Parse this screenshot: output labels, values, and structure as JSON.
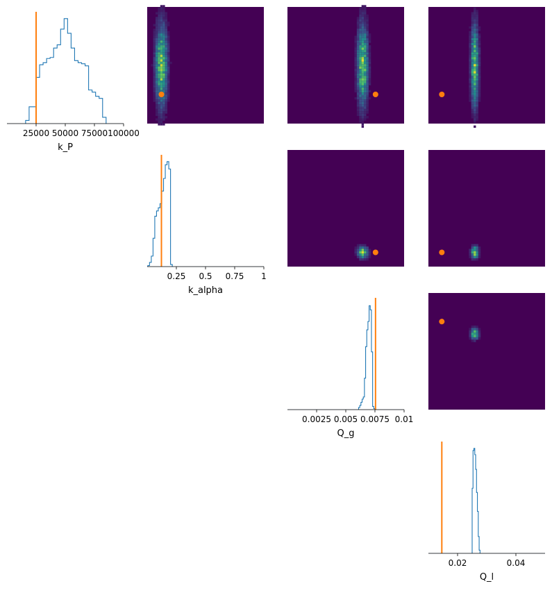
{
  "chart_data": {
    "type": "pairplot",
    "style": {
      "hist_color": "#1f77b4",
      "truth_color": "#ff7f0e",
      "heatmap_bg": "#440154"
    },
    "parameters": [
      {
        "name": "k_P",
        "xlabel": "k_P",
        "xlim": [
          0,
          100000
        ],
        "ticks": [
          25000,
          50000,
          75000,
          100000
        ],
        "tick_labels": [
          "25000",
          "50000",
          "75000",
          "100000"
        ],
        "truth": 25000,
        "hist": {
          "edges": [
            16000,
            19000,
            22000,
            25000,
            28000,
            31000,
            34000,
            37000,
            40000,
            43000,
            46000,
            49000,
            52000,
            55000,
            58000,
            61000,
            64000,
            67000,
            70000,
            73000,
            76000,
            79000,
            82000,
            85000
          ],
          "counts": [
            0.03,
            0.16,
            0.16,
            0.44,
            0.56,
            0.58,
            0.62,
            0.63,
            0.72,
            0.75,
            0.9,
            1.0,
            0.86,
            0.72,
            0.6,
            0.58,
            0.57,
            0.55,
            0.32,
            0.3,
            0.26,
            0.24,
            0.06
          ]
        }
      },
      {
        "name": "k_alpha",
        "xlabel": "k_alpha",
        "xlim": [
          0,
          1
        ],
        "ticks": [
          0.25,
          0.5,
          0.75,
          1
        ],
        "tick_labels": [
          "0.25",
          "0.5",
          "0.75",
          "1"
        ],
        "truth": 0.122,
        "hist": {
          "edges": [
            0.005,
            0.02,
            0.035,
            0.05,
            0.065,
            0.08,
            0.095,
            0.11,
            0.125,
            0.14,
            0.155,
            0.17,
            0.185,
            0.2,
            0.215
          ],
          "counts": [
            0.01,
            0.04,
            0.1,
            0.27,
            0.48,
            0.53,
            0.56,
            0.6,
            0.72,
            0.84,
            0.97,
            1.0,
            0.93,
            0.02
          ]
        }
      },
      {
        "name": "Q_g",
        "xlabel": "Q_g",
        "xlim": [
          0,
          0.01
        ],
        "ticks": [
          0.0025,
          0.005,
          0.0075,
          0.01
        ],
        "tick_labels": [
          "0.0025",
          "0.005",
          "0.0075",
          "0.01"
        ],
        "truth": 0.00755,
        "hist": {
          "edges": [
            0.0061,
            0.0062,
            0.0063,
            0.0064,
            0.0065,
            0.0066,
            0.0067,
            0.0068,
            0.0069,
            0.007,
            0.0071,
            0.0072,
            0.0073,
            0.0074,
            0.0075
          ],
          "counts": [
            0.02,
            0.04,
            0.07,
            0.1,
            0.12,
            0.3,
            0.6,
            0.76,
            0.84,
            0.99,
            0.95,
            0.55,
            0.03,
            0.01
          ]
        }
      },
      {
        "name": "Q_l",
        "xlabel": "Q_l",
        "xlim": [
          0.01,
          0.05
        ],
        "ticks": [
          0.02,
          0.04
        ],
        "tick_labels": [
          "0.02",
          "0.04"
        ],
        "truth": 0.0146,
        "hist": {
          "edges": [
            0.025,
            0.0253,
            0.0256,
            0.0259,
            0.0262,
            0.0265,
            0.0268,
            0.0271,
            0.0274,
            0.0277
          ],
          "counts": [
            0.62,
            0.98,
            1.0,
            0.94,
            0.8,
            0.58,
            0.4,
            0.16,
            0.03
          ]
        }
      }
    ],
    "pair_panels": [
      {
        "row": 0,
        "col": 1,
        "x_param": "k_alpha",
        "y_param": "k_P",
        "blob": {
          "cx": 0.122,
          "cy": 50000,
          "sx": 0.09,
          "sy": 60000
        },
        "truth": [
          0.122,
          25000
        ]
      },
      {
        "row": 0,
        "col": 2,
        "x_param": "Q_g",
        "y_param": "k_P",
        "blob": {
          "cx": 0.00645,
          "cy": 50000,
          "sx": 0.0008,
          "sy": 60000
        },
        "truth": [
          0.00755,
          25000
        ]
      },
      {
        "row": 0,
        "col": 3,
        "x_param": "Q_l",
        "y_param": "k_P",
        "blob": {
          "cx": 0.0259,
          "cy": 50000,
          "sx": 0.0023,
          "sy": 60000
        },
        "truth": [
          0.0146,
          25000
        ]
      },
      {
        "row": 1,
        "col": 2,
        "x_param": "Q_g",
        "y_param": "k_alpha",
        "blob": {
          "cx": 0.00645,
          "cy": 0.122,
          "sx": 0.0008,
          "sy": 0.09
        },
        "truth": [
          0.00755,
          0.122
        ]
      },
      {
        "row": 1,
        "col": 3,
        "x_param": "Q_l",
        "y_param": "k_alpha",
        "blob": {
          "cx": 0.0259,
          "cy": 0.122,
          "sx": 0.0023,
          "sy": 0.09
        },
        "truth": [
          0.0146,
          0.122
        ]
      },
      {
        "row": 2,
        "col": 3,
        "x_param": "Q_l",
        "y_param": "Q_g",
        "blob": {
          "cx": 0.0259,
          "cy": 0.0065,
          "sx": 0.0023,
          "sy": 0.0008
        },
        "truth": [
          0.0146,
          0.00755
        ]
      }
    ]
  }
}
